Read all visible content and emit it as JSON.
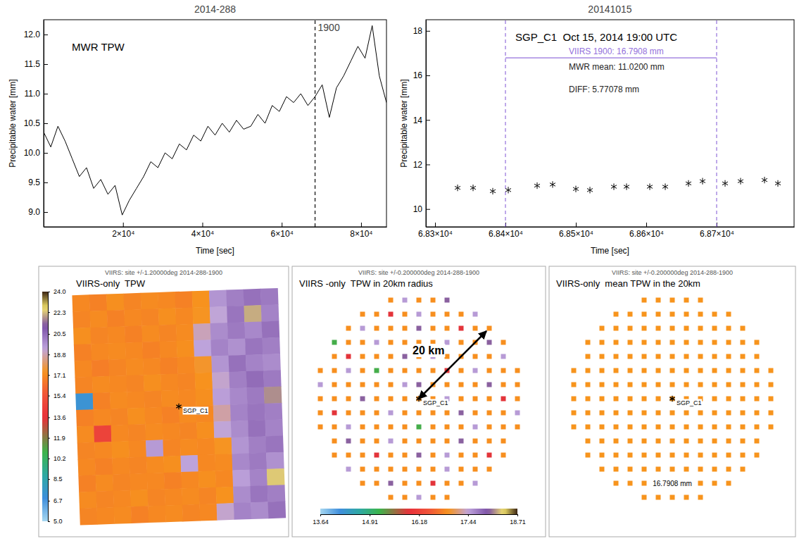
{
  "chart_data": [
    {
      "type": "line",
      "title": "2014-288",
      "annotation": "MWR TPW",
      "xlabel": "Time [sec]",
      "ylabel": "Precipitable water [mm]",
      "color": "#000000",
      "x": [
        0,
        1800,
        3600,
        5400,
        7200,
        9000,
        10800,
        12600,
        14400,
        16200,
        18000,
        19800,
        21600,
        23400,
        25200,
        27000,
        28800,
        30600,
        32400,
        34200,
        36000,
        37800,
        39600,
        41400,
        43200,
        45000,
        46800,
        48600,
        50400,
        52200,
        54000,
        55800,
        57600,
        59400,
        61200,
        63000,
        64800,
        66600,
        68400,
        70200,
        72000,
        73800,
        75600,
        77400,
        79200,
        81000,
        82800,
        84600,
        86400
      ],
      "values": [
        10.35,
        10.1,
        10.45,
        10.2,
        9.9,
        9.6,
        9.75,
        9.4,
        9.55,
        9.3,
        9.45,
        8.95,
        9.2,
        9.4,
        9.6,
        9.85,
        9.75,
        10.0,
        9.9,
        10.15,
        10.05,
        10.3,
        10.2,
        10.45,
        10.3,
        10.5,
        10.35,
        10.55,
        10.4,
        10.45,
        10.65,
        10.5,
        10.8,
        10.7,
        10.95,
        10.85,
        11.0,
        10.8,
        10.95,
        11.15,
        10.6,
        11.1,
        11.3,
        11.55,
        11.8,
        11.6,
        12.15,
        11.3,
        10.85
      ],
      "xlim": [
        0,
        86400
      ],
      "xticks": [
        {
          "value": 20000,
          "label": "2×10⁴"
        },
        {
          "value": 40000,
          "label": "4×10⁴"
        },
        {
          "value": 60000,
          "label": "6×10⁴"
        },
        {
          "value": 80000,
          "label": "8×10⁴"
        }
      ],
      "ylim": [
        8.75,
        12.25
      ],
      "yticks": [
        {
          "value": 9,
          "label": "9.0"
        },
        9.5,
        {
          "value": 10,
          "label": "10.0"
        },
        10.5,
        {
          "value": 11,
          "label": "11.0"
        },
        11.5,
        {
          "value": 12,
          "label": "12.0"
        }
      ],
      "vlines": [
        {
          "x": 68400,
          "label": "1900",
          "color": "#000000",
          "line_style": "dashed"
        }
      ]
    },
    {
      "type": "scatter",
      "title": "20141015",
      "annotation": "SGP_C1  Oct 15, 2014 19:00 UTC",
      "xlabel": "Time [sec]",
      "ylabel": "Precipitable water [mm]",
      "marker": "asterisk",
      "color": "#000000",
      "x": [
        68332,
        68354,
        68382,
        68404,
        68445,
        68467,
        68500,
        68520,
        68554,
        68572,
        68605,
        68627,
        68660,
        68680,
        68712,
        68734,
        68768,
        68787
      ],
      "values": [
        10.95,
        10.95,
        10.8,
        10.85,
        11.05,
        11.1,
        10.9,
        10.85,
        11.0,
        11.0,
        11.0,
        11.0,
        11.15,
        11.25,
        11.15,
        11.25,
        11.3,
        11.15
      ],
      "xlim": [
        68287,
        68810
      ],
      "xticks": [
        {
          "value": 68300,
          "label": "6.83×10⁴"
        },
        {
          "value": 68400,
          "label": "6.84×10⁴"
        },
        {
          "value": 68500,
          "label": "6.85×10⁴"
        },
        {
          "value": 68600,
          "label": "6.86×10⁴"
        },
        {
          "value": 68700,
          "label": "6.87×10⁴"
        }
      ],
      "ylim": [
        9.2,
        18.5
      ],
      "yticks": [
        10,
        12,
        14,
        16,
        18
      ],
      "vlines": [
        {
          "x": 68400,
          "color": "#9370db",
          "line_style": "dashed"
        },
        {
          "x": 68700,
          "color": "#9370db",
          "line_style": "dashed"
        }
      ],
      "hlines": [
        {
          "y": 16.7908,
          "x": [
            68400,
            68700
          ],
          "label": "VIIRS 1900: 16.7908 mm",
          "color": "#9370db"
        }
      ],
      "annotations": [
        "MWR mean: 11.0200 mm",
        "DIFF: 5.77078 mm"
      ]
    },
    {
      "type": "heatmap",
      "title": "VIIRS: site +/-1.20000deg 2014-288-1900",
      "annotation": "VIIRS-only  TPW",
      "site": "SGP_C1",
      "cells": [
        [
          17.0,
          16.8,
          17.2,
          16.9,
          17.1,
          17.0,
          16.8,
          17.3,
          19.6,
          20.1,
          20.4,
          20.2
        ],
        [
          16.9,
          17.1,
          16.8,
          17.0,
          16.9,
          17.2,
          17.0,
          17.4,
          19.2,
          20.3,
          22.1,
          20.0
        ],
        [
          17.2,
          16.9,
          17.0,
          16.8,
          17.1,
          16.9,
          17.1,
          18.9,
          19.8,
          20.2,
          19.9,
          20.4
        ],
        [
          16.8,
          17.0,
          17.1,
          17.0,
          16.8,
          17.0,
          17.2,
          19.3,
          20.0,
          19.7,
          20.3,
          20.1
        ],
        [
          17.0,
          16.7,
          16.9,
          17.1,
          17.0,
          16.8,
          17.0,
          17.5,
          19.6,
          20.4,
          20.0,
          19.8
        ],
        [
          16.9,
          17.1,
          17.0,
          16.9,
          17.2,
          17.0,
          16.9,
          17.3,
          19.1,
          20.1,
          20.5,
          20.2
        ],
        [
          7.2,
          16.8,
          17.1,
          17.0,
          16.9,
          17.1,
          17.0,
          17.2,
          19.4,
          19.9,
          20.2,
          21.8
        ],
        [
          16.8,
          17.0,
          16.9,
          17.2,
          17.0,
          16.8,
          17.1,
          17.0,
          18.7,
          20.0,
          20.3,
          20.1
        ],
        [
          17.1,
          14.6,
          17.0,
          16.9,
          17.1,
          17.0,
          16.9,
          17.2,
          19.2,
          19.8,
          20.4,
          20.0
        ],
        [
          16.9,
          17.0,
          17.2,
          17.0,
          19.5,
          16.9,
          17.1,
          17.0,
          17.4,
          19.6,
          20.1,
          20.3
        ],
        [
          17.0,
          16.8,
          17.0,
          16.9,
          17.1,
          17.2,
          19.3,
          17.0,
          17.1,
          19.9,
          20.2,
          19.7
        ],
        [
          16.8,
          17.1,
          16.9,
          17.0,
          17.0,
          16.8,
          17.0,
          17.2,
          17.0,
          19.4,
          20.0,
          22.4
        ],
        [
          17.1,
          16.9,
          17.0,
          17.2,
          16.9,
          17.0,
          17.1,
          16.9,
          17.3,
          19.8,
          20.3,
          20.1
        ],
        [
          16.9,
          17.0,
          17.1,
          16.8,
          17.0,
          17.1,
          16.9,
          17.0,
          19.1,
          20.0,
          19.8,
          20.4
        ]
      ],
      "colorbar": {
        "range": [
          5,
          24
        ],
        "ticks": [
          {
            "value": 5,
            "label": "5.0"
          },
          6.7,
          8.5,
          10.2,
          11.9,
          13.6,
          15.4,
          17.1,
          18.8,
          20.5,
          22.3,
          {
            "value": 24,
            "label": "24.0"
          }
        ]
      }
    },
    {
      "type": "dots",
      "title": "VIIRS: site +/-0.200000deg 2014-288-1900",
      "annotation": "VIIRS -only  TPW in 20km radius",
      "site": "SGP_C1",
      "radius_label": "20 km",
      "cells": [
        [
          16.9,
          17.5,
          16.9,
          16.9,
          18.0
        ],
        [
          16.9,
          16.9,
          15.9,
          16.9,
          17.5,
          16.9,
          16.9,
          16.9,
          17.5
        ],
        [
          16.9,
          17.5,
          16.9,
          16.9,
          16.9,
          18.0,
          16.9,
          16.9,
          15.9,
          16.9,
          16.9
        ],
        [
          15.2,
          16.9,
          16.9,
          17.5,
          16.9,
          16.9,
          16.9,
          16.9,
          17.5,
          16.9,
          16.9,
          18.0,
          16.9
        ],
        [
          16.9,
          15.9,
          16.9,
          16.9,
          16.9,
          18.0,
          16.9,
          17.5,
          16.9,
          16.9,
          16.9,
          16.9,
          17.5
        ],
        [
          16.9,
          16.9,
          17.5,
          16.9,
          15.2,
          16.9,
          16.9,
          16.9,
          16.9,
          15.9,
          16.9,
          17.5,
          16.9,
          16.9,
          16.9
        ],
        [
          17.5,
          16.9,
          16.9,
          16.9,
          16.9,
          16.9,
          17.5,
          18.0,
          16.9,
          16.9,
          16.9,
          16.9,
          18.0,
          16.9,
          16.9
        ],
        [
          16.9,
          16.9,
          16.9,
          18.0,
          16.9,
          16.9,
          16.9,
          16.9,
          16.9,
          17.5,
          16.9,
          16.9,
          16.9,
          15.9,
          16.9
        ],
        [
          16.9,
          15.9,
          16.9,
          16.9,
          16.9,
          17.5,
          16.9,
          16.9,
          16.9,
          16.9,
          18.0,
          16.9,
          16.9,
          16.9,
          17.5
        ],
        [
          16.9,
          16.9,
          17.5,
          16.9,
          16.9,
          16.9,
          16.9,
          15.2,
          16.9,
          16.9,
          16.9,
          17.5,
          16.9,
          16.9,
          16.9
        ],
        [
          16.9,
          18.0,
          16.9,
          16.9,
          17.5,
          16.9,
          16.9,
          16.9,
          16.9,
          18.0,
          16.9,
          16.9,
          16.9
        ],
        [
          16.9,
          16.9,
          16.9,
          15.9,
          16.9,
          16.9,
          18.0,
          16.9,
          17.5,
          16.9,
          16.9,
          15.9,
          16.9
        ],
        [
          17.5,
          16.9,
          16.9,
          16.9,
          16.9,
          16.9,
          16.9,
          17.5,
          16.9,
          16.9,
          16.9
        ],
        [
          16.9,
          16.9,
          18.0,
          16.9,
          16.9,
          15.9,
          16.9,
          16.9,
          17.5
        ],
        [
          16.9,
          16.9,
          17.5,
          16.9,
          16.9
        ]
      ],
      "colorbar": {
        "range": [
          13.64,
          18.71
        ],
        "ticks": [
          13.64,
          14.91,
          16.18,
          17.44,
          18.71
        ]
      }
    },
    {
      "type": "dots",
      "title": "VIIRS: site +/-0.200000deg 2014-288-1900",
      "annotation": "VIIRS-only  mean TPW in the 20km",
      "site": "SGP_C1",
      "values": [
        16.7908
      ],
      "value_labels": [
        "16.7908 mm"
      ],
      "data_labels": true,
      "color": "#f7941d"
    }
  ]
}
